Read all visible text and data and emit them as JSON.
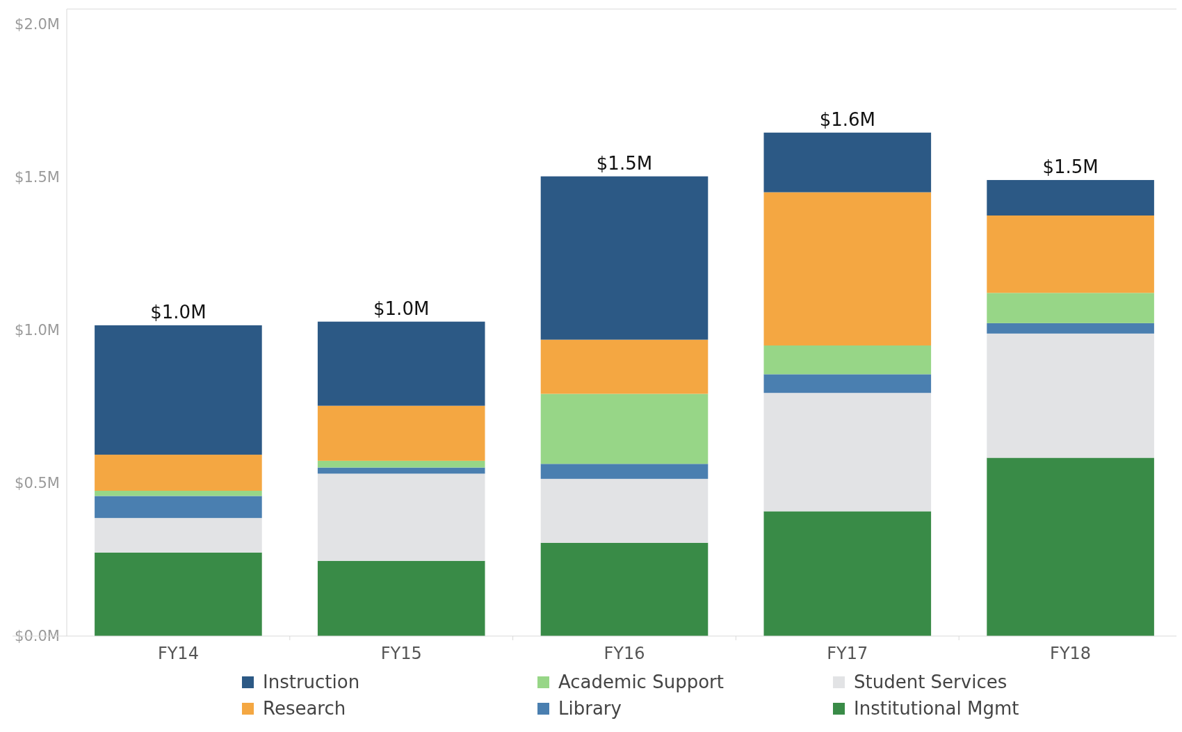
{
  "chart_data": {
    "type": "bar",
    "stacked": true,
    "categories": [
      "FY14",
      "FY15",
      "FY16",
      "FY17",
      "FY18"
    ],
    "series": [
      {
        "name": "Institutional Mgmt",
        "color": "#398b47",
        "values": [
          0.273,
          0.246,
          0.305,
          0.408,
          0.583
        ]
      },
      {
        "name": "Student Services",
        "color": "#e2e3e5",
        "values": [
          0.113,
          0.285,
          0.209,
          0.387,
          0.406
        ]
      },
      {
        "name": "Library",
        "color": "#4a7fb0",
        "values": [
          0.072,
          0.02,
          0.049,
          0.061,
          0.034
        ]
      },
      {
        "name": "Academic Support",
        "color": "#97d687",
        "values": [
          0.017,
          0.022,
          0.229,
          0.094,
          0.099
        ]
      },
      {
        "name": "Research",
        "color": "#f4a742",
        "values": [
          0.118,
          0.18,
          0.177,
          0.501,
          0.253
        ]
      },
      {
        "name": "Instruction",
        "color": "#2c5985",
        "values": [
          0.423,
          0.275,
          0.534,
          0.195,
          0.116
        ]
      }
    ],
    "ylim": [
      0,
      2.05
    ],
    "yticks": [
      {
        "value": 0,
        "label": "$0.0M"
      },
      {
        "value": 0.5,
        "label": "$0.5M"
      },
      {
        "value": 1,
        "label": "$1.0M"
      },
      {
        "value": 1.5,
        "label": "$1.5M"
      },
      {
        "value": 2,
        "label": "$2.0M"
      }
    ],
    "totals": [
      "$1.0M",
      "$1.0M",
      "$1.5M",
      "$1.6M",
      "$1.5M"
    ],
    "grid": false,
    "legend": "bottom"
  }
}
